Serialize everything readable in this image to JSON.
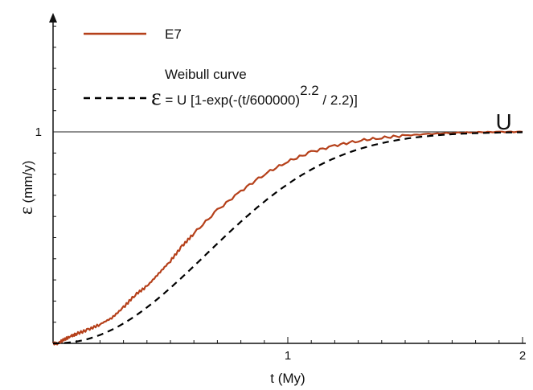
{
  "chart_data": {
    "type": "line",
    "xlabel": "t (My)",
    "ylabel_symbol": "ε",
    "ylabel_unit": "(mm/y)",
    "xlim": [
      0,
      2
    ],
    "ylim": [
      0,
      1.5
    ],
    "x_ticks": [
      {
        "value": 1,
        "label": "1"
      },
      {
        "value": 2,
        "label": "2"
      }
    ],
    "y_ticks": [
      {
        "value": 1,
        "label": "1"
      }
    ],
    "x_minor_step": 0.1,
    "y_minor_step": 0.1,
    "reference_line": {
      "y": 1,
      "label": "U"
    },
    "legend": {
      "position": "top-left",
      "series_label": "E7",
      "weibull_title": "Weibull curve",
      "formula_symbol": "ε",
      "formula_main": " = U [1-exp(-(t/600000)",
      "formula_exponent": "2.2",
      "formula_tail": " / 2.2)]"
    },
    "series": [
      {
        "name": "E7",
        "style": "solid",
        "color": "#b5401a",
        "x": [
          0,
          0.02,
          0.05,
          0.08,
          0.1,
          0.15,
          0.2,
          0.25,
          0.3,
          0.35,
          0.4,
          0.45,
          0.5,
          0.55,
          0.6,
          0.7,
          0.8,
          0.9,
          1.0,
          1.1,
          1.2,
          1.3,
          1.4,
          1.5,
          1.6,
          1.7,
          1.8,
          1.9,
          2.0
        ],
        "y": [
          0,
          0.0,
          0.02,
          0.035,
          0.045,
          0.065,
          0.09,
          0.12,
          0.17,
          0.23,
          0.27,
          0.33,
          0.39,
          0.46,
          0.52,
          0.63,
          0.72,
          0.8,
          0.86,
          0.905,
          0.935,
          0.958,
          0.972,
          0.983,
          0.99,
          0.995,
          0.998,
          1.0,
          1.0
        ]
      },
      {
        "name": "Weibull curve",
        "style": "dashed",
        "color": "#000000",
        "formula": {
          "scale_years": 600000,
          "shape": 2.2,
          "U": 1
        }
      }
    ]
  }
}
